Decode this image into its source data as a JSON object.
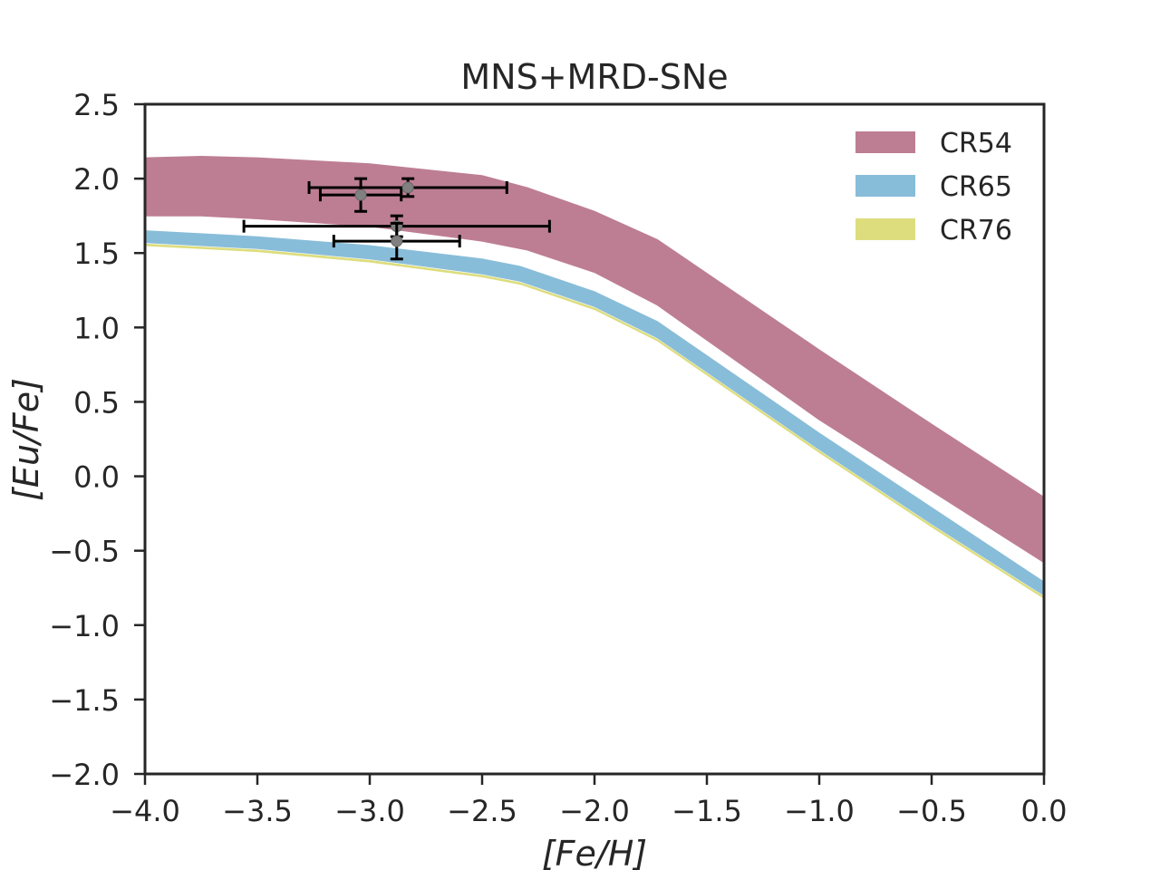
{
  "chart_data": {
    "type": "area",
    "title": "MNS+MRD-SNe",
    "xlabel": "[Fe/H]",
    "ylabel": "[Eu/Fe]",
    "xlim": [
      -4.0,
      0.0
    ],
    "ylim": [
      -2.0,
      2.5
    ],
    "xticks": [
      -4.0,
      -3.5,
      -3.0,
      -2.5,
      -2.0,
      -1.5,
      -1.0,
      -0.5,
      0.0
    ],
    "xtick_labels": [
      "−4.0",
      "−3.5",
      "−3.0",
      "−2.5",
      "−2.0",
      "−1.5",
      "−1.0",
      "−0.5",
      "0.0"
    ],
    "yticks": [
      2.5,
      2.0,
      1.5,
      1.0,
      0.5,
      0.0,
      -0.5,
      -1.0,
      -1.5,
      -2.0
    ],
    "ytick_labels": [
      "2.5",
      "2.0",
      "1.5",
      "1.0",
      "0.5",
      "0.0",
      "−0.5",
      "−1.0",
      "−1.5",
      "−2.0"
    ],
    "grid": false,
    "legend_position": "top-right",
    "series": [
      {
        "name": "CR54",
        "color": "#bd7e93",
        "x": [
          -4.0,
          -3.75,
          -3.5,
          -3.0,
          -2.5,
          -2.3,
          -2.0,
          -1.72,
          -1.0,
          -0.5,
          0.0
        ],
        "upper": [
          2.14,
          2.15,
          2.14,
          2.1,
          2.02,
          1.94,
          1.78,
          1.59,
          0.85,
          0.35,
          -0.14
        ],
        "lower": [
          1.75,
          1.75,
          1.73,
          1.68,
          1.58,
          1.52,
          1.37,
          1.15,
          0.38,
          -0.1,
          -0.58
        ]
      },
      {
        "name": "CR65",
        "color": "#88bdd9",
        "x": [
          -4.0,
          -3.5,
          -3.0,
          -2.5,
          -2.33,
          -2.0,
          -1.72,
          -1.0,
          -0.5,
          0.0
        ],
        "upper": [
          1.65,
          1.61,
          1.55,
          1.46,
          1.41,
          1.24,
          1.04,
          0.29,
          -0.21,
          -0.71
        ],
        "lower": [
          1.57,
          1.53,
          1.46,
          1.36,
          1.31,
          1.14,
          0.93,
          0.18,
          -0.32,
          -0.8
        ]
      },
      {
        "name": "CR76",
        "color": "#dddd7e",
        "x": [
          -4.0,
          -3.5,
          -3.0,
          -2.5,
          -2.33,
          -2.0,
          -1.72,
          -1.0,
          -0.5,
          0.0
        ],
        "upper": [
          1.56,
          1.52,
          1.45,
          1.35,
          1.3,
          1.13,
          0.92,
          0.17,
          -0.33,
          -0.81
        ],
        "lower": [
          1.55,
          1.51,
          1.44,
          1.34,
          1.29,
          1.12,
          0.91,
          0.16,
          -0.34,
          -0.82
        ]
      }
    ],
    "observations": [
      {
        "x": -3.04,
        "y": 1.89,
        "xerr": 0.18,
        "yerr": 0.11
      },
      {
        "x": -2.83,
        "y": 1.94,
        "xerr": 0.44,
        "yerr": 0.06
      },
      {
        "x": -2.88,
        "y": 1.68,
        "xerr": 0.68,
        "yerr": 0.07
      },
      {
        "x": -2.88,
        "y": 1.58,
        "xerr": 0.28,
        "yerr": 0.12
      }
    ],
    "observation_color": "#808080",
    "errorbar_color": "#000000"
  }
}
